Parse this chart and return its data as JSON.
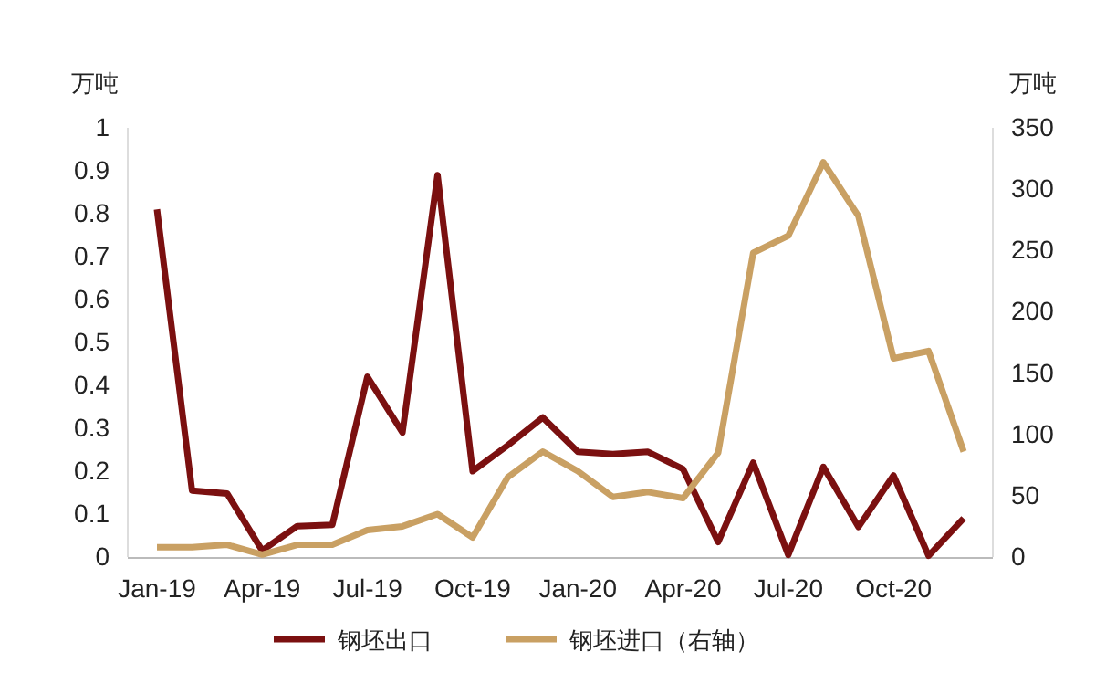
{
  "chart_data": {
    "type": "line",
    "ylabel": "万吨",
    "y2label": "万吨",
    "categories": [
      "Jan-19",
      null,
      null,
      "Apr-19",
      null,
      null,
      "Jul-19",
      null,
      null,
      "Oct-19",
      null,
      null,
      "Jan-20",
      null,
      null,
      "Apr-20",
      null,
      null,
      "Jul-20",
      null,
      null,
      "Oct-20",
      null,
      null
    ],
    "series": [
      {
        "name": "钢坯出口",
        "color": "#7b1010",
        "values": [
          0.81,
          0.155,
          0.148,
          0.015,
          0.072,
          0.075,
          0.42,
          0.29,
          0.89,
          0.2,
          0.26,
          0.325,
          0.245,
          0.24,
          0.245,
          0.205,
          0.035,
          0.22,
          0.005,
          0.21,
          0.07,
          0.19,
          0.003,
          0.09
        ]
      },
      {
        "name": "钢坯进口（右轴）",
        "color": "#c9a063",
        "axis": "y2",
        "values": [
          8,
          8,
          10,
          2,
          10,
          10,
          22,
          25,
          35,
          16,
          65,
          86,
          70,
          49,
          53,
          48,
          85,
          248,
          262,
          322,
          278,
          162,
          168,
          86
        ]
      }
    ],
    "ylim": [
      0,
      1
    ],
    "yticks": [
      0,
      0.1,
      0.2,
      0.3,
      0.4,
      0.5,
      0.6,
      0.7,
      0.8,
      0.9,
      1
    ],
    "y2lim": [
      0,
      350
    ],
    "y2ticks": [
      0,
      50,
      100,
      150,
      200,
      250,
      300,
      350
    ],
    "grid": false,
    "legend": "bottom",
    "marker": "none",
    "line_style": "solid"
  }
}
